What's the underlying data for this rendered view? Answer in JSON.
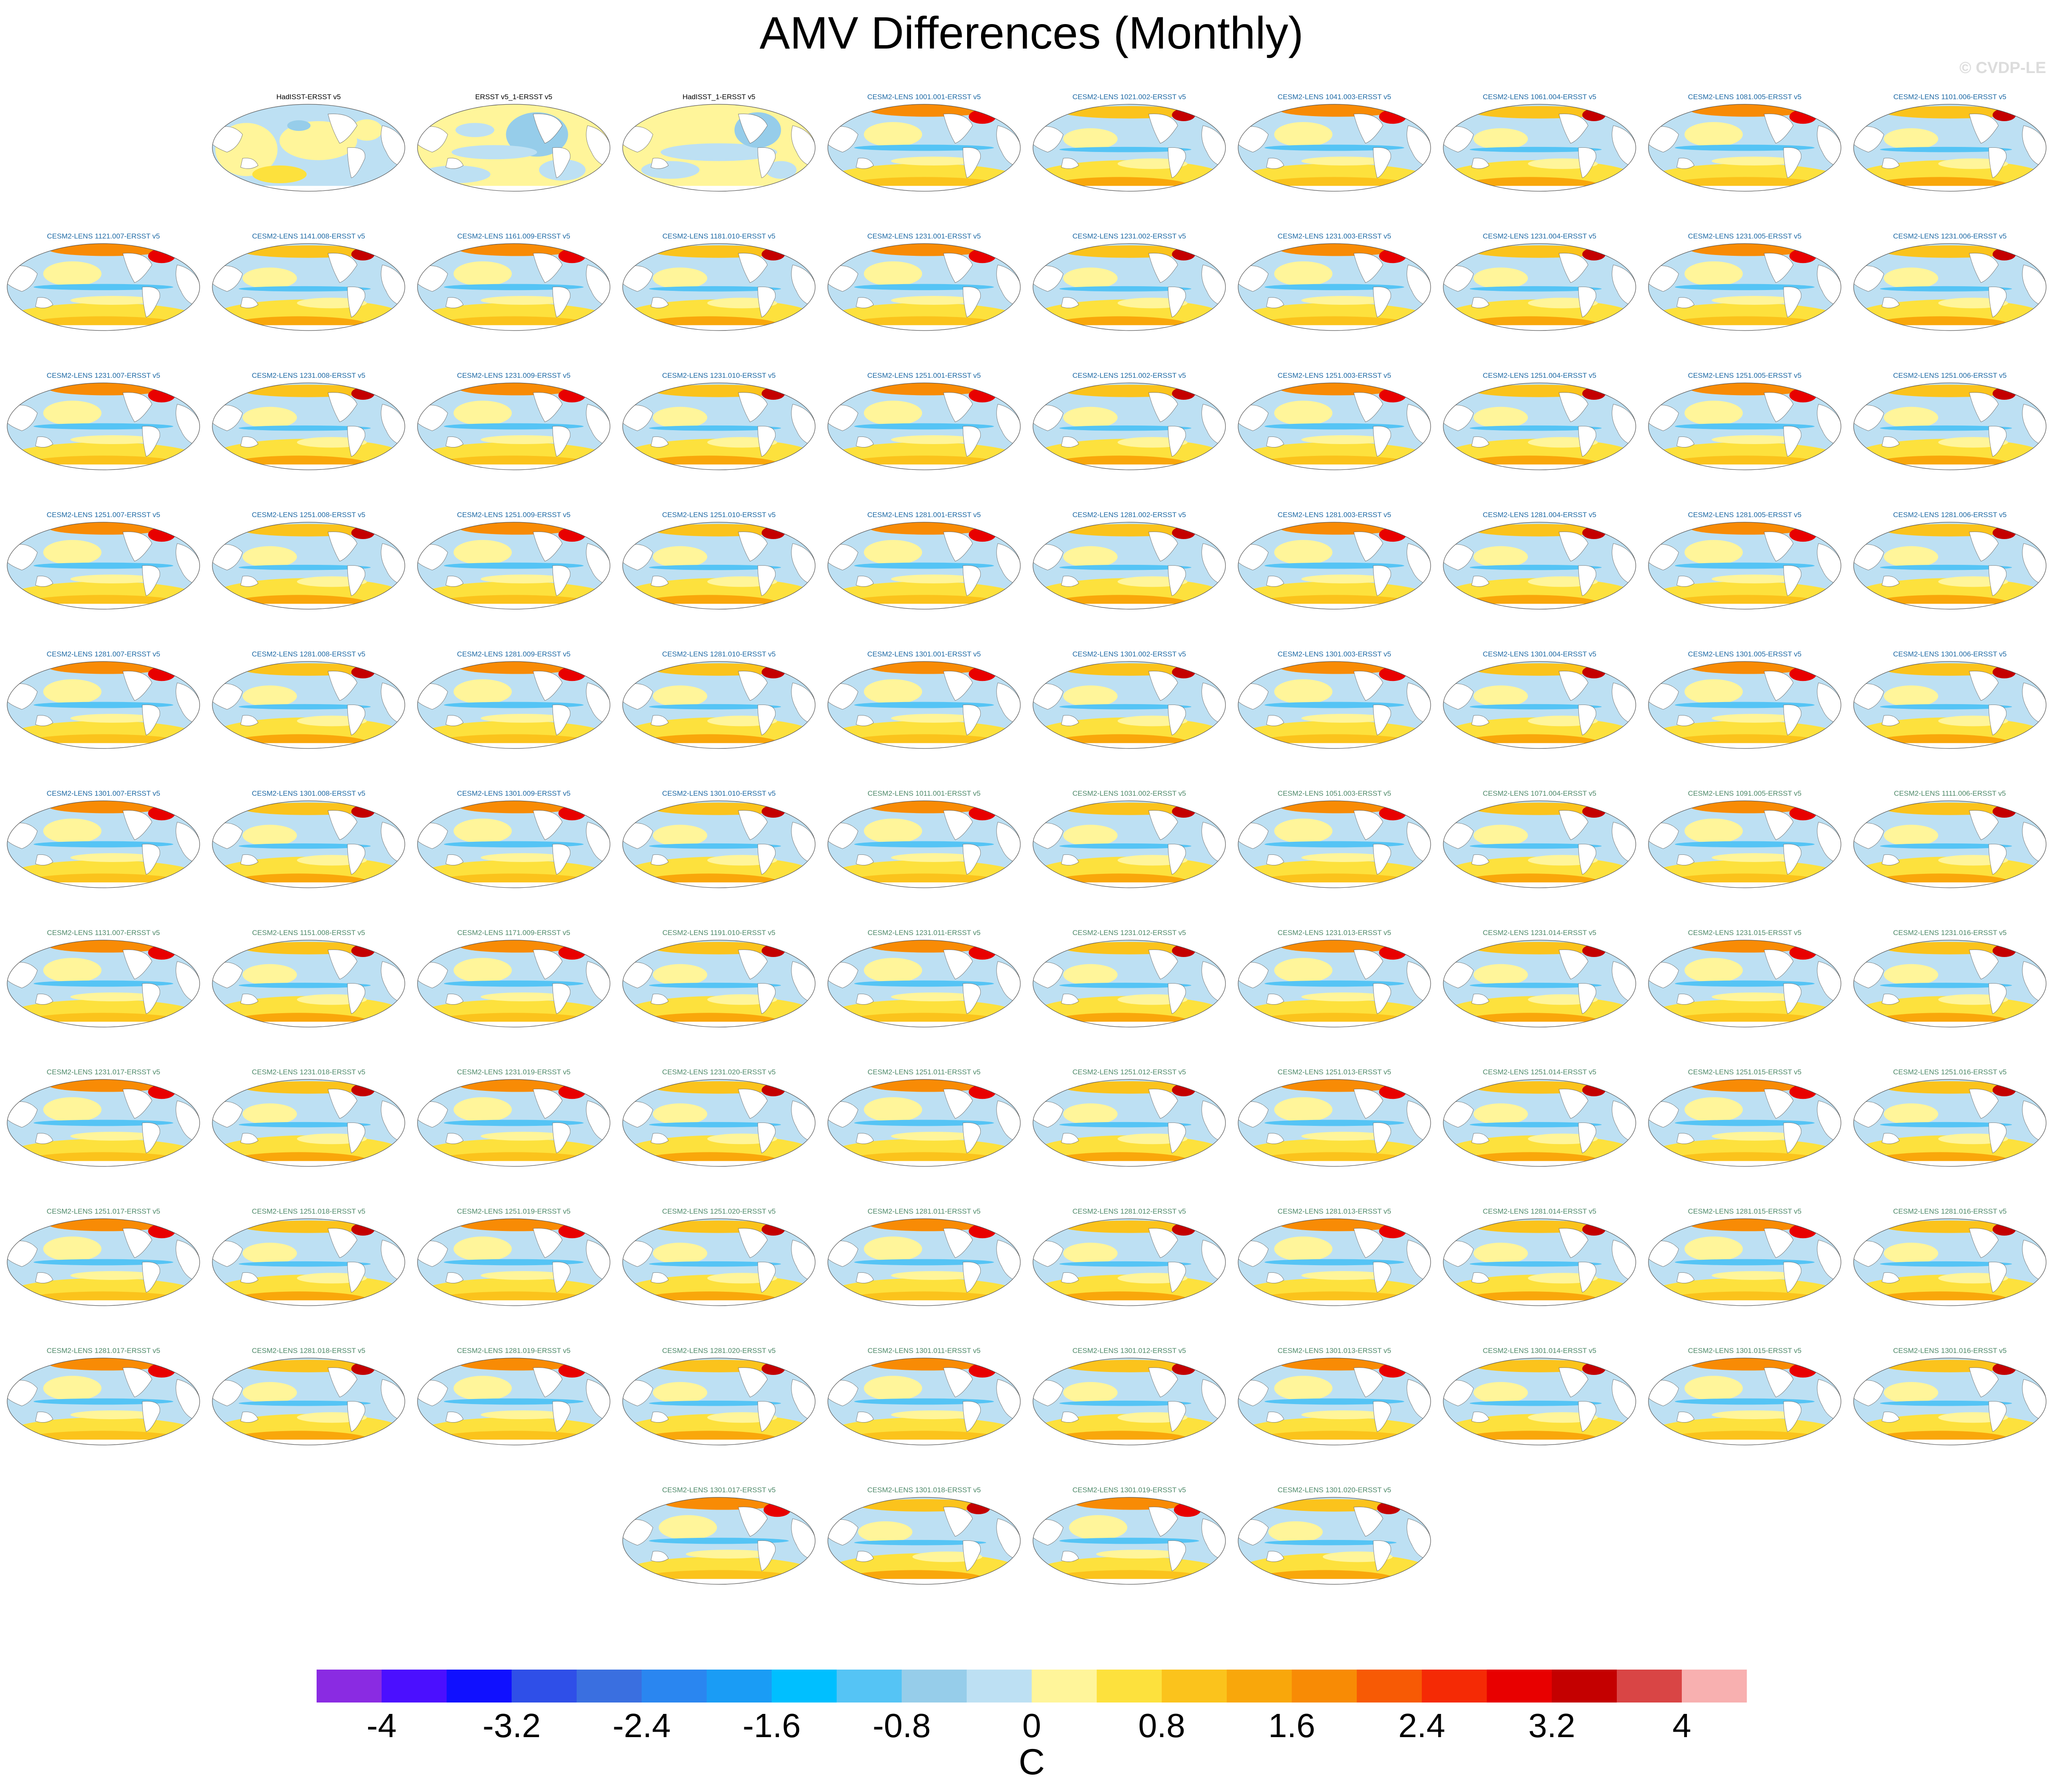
{
  "page": {
    "title": "AMV Differences (Monthly)",
    "watermark": "© CVDP-LE"
  },
  "chart_data": {
    "type": "heatmap",
    "description_units": "C",
    "title": "AMV Differences (Monthly)",
    "projection": "global map panels (Pacific-centered)",
    "title_colors": {
      "observations": "#000000",
      "first_ensemble_set": "#1f6aa5",
      "second_ensemble_set": "#4f8a6a"
    },
    "panels": [
      {
        "label": "HadISST-ERSST v5",
        "group": "observations",
        "style": 0
      },
      {
        "label": "ERSST v5_1-ERSST v5",
        "group": "observations",
        "style": 1
      },
      {
        "label": "HadISST_1-ERSST v5",
        "group": "observations",
        "style": 2
      },
      {
        "label": "CESM2-LENS 1001.001-ERSST v5",
        "group": "first_ensemble_set",
        "style": 3
      },
      {
        "label": "CESM2-LENS 1021.002-ERSST v5",
        "group": "first_ensemble_set",
        "style": 4
      },
      {
        "label": "CESM2-LENS 1041.003-ERSST v5",
        "group": "first_ensemble_set",
        "style": 3
      },
      {
        "label": "CESM2-LENS 1061.004-ERSST v5",
        "group": "first_ensemble_set",
        "style": 4
      },
      {
        "label": "CESM2-LENS 1081.005-ERSST v5",
        "group": "first_ensemble_set",
        "style": 3
      },
      {
        "label": "CESM2-LENS 1101.006-ERSST v5",
        "group": "first_ensemble_set",
        "style": 4
      },
      {
        "label": "CESM2-LENS 1121.007-ERSST v5",
        "group": "first_ensemble_set",
        "style": 3
      },
      {
        "label": "CESM2-LENS 1141.008-ERSST v5",
        "group": "first_ensemble_set",
        "style": 4
      },
      {
        "label": "CESM2-LENS 1161.009-ERSST v5",
        "group": "first_ensemble_set",
        "style": 3
      },
      {
        "label": "CESM2-LENS 1181.010-ERSST v5",
        "group": "first_ensemble_set",
        "style": 4
      },
      {
        "label": "CESM2-LENS 1231.001-ERSST v5",
        "group": "first_ensemble_set",
        "style": 3
      },
      {
        "label": "CESM2-LENS 1231.002-ERSST v5",
        "group": "first_ensemble_set",
        "style": 4
      },
      {
        "label": "CESM2-LENS 1231.003-ERSST v5",
        "group": "first_ensemble_set",
        "style": 3
      },
      {
        "label": "CESM2-LENS 1231.004-ERSST v5",
        "group": "first_ensemble_set",
        "style": 4
      },
      {
        "label": "CESM2-LENS 1231.005-ERSST v5",
        "group": "first_ensemble_set",
        "style": 3
      },
      {
        "label": "CESM2-LENS 1231.006-ERSST v5",
        "group": "first_ensemble_set",
        "style": 4
      },
      {
        "label": "CESM2-LENS 1231.007-ERSST v5",
        "group": "first_ensemble_set",
        "style": 3
      },
      {
        "label": "CESM2-LENS 1231.008-ERSST v5",
        "group": "first_ensemble_set",
        "style": 4
      },
      {
        "label": "CESM2-LENS 1231.009-ERSST v5",
        "group": "first_ensemble_set",
        "style": 3
      },
      {
        "label": "CESM2-LENS 1231.010-ERSST v5",
        "group": "first_ensemble_set",
        "style": 4
      },
      {
        "label": "CESM2-LENS 1251.001-ERSST v5",
        "group": "first_ensemble_set",
        "style": 3
      },
      {
        "label": "CESM2-LENS 1251.002-ERSST v5",
        "group": "first_ensemble_set",
        "style": 4
      },
      {
        "label": "CESM2-LENS 1251.003-ERSST v5",
        "group": "first_ensemble_set",
        "style": 3
      },
      {
        "label": "CESM2-LENS 1251.004-ERSST v5",
        "group": "first_ensemble_set",
        "style": 4
      },
      {
        "label": "CESM2-LENS 1251.005-ERSST v5",
        "group": "first_ensemble_set",
        "style": 3
      },
      {
        "label": "CESM2-LENS 1251.006-ERSST v5",
        "group": "first_ensemble_set",
        "style": 4
      },
      {
        "label": "CESM2-LENS 1251.007-ERSST v5",
        "group": "first_ensemble_set",
        "style": 3
      },
      {
        "label": "CESM2-LENS 1251.008-ERSST v5",
        "group": "first_ensemble_set",
        "style": 4
      },
      {
        "label": "CESM2-LENS 1251.009-ERSST v5",
        "group": "first_ensemble_set",
        "style": 3
      },
      {
        "label": "CESM2-LENS 1251.010-ERSST v5",
        "group": "first_ensemble_set",
        "style": 4
      },
      {
        "label": "CESM2-LENS 1281.001-ERSST v5",
        "group": "first_ensemble_set",
        "style": 3
      },
      {
        "label": "CESM2-LENS 1281.002-ERSST v5",
        "group": "first_ensemble_set",
        "style": 4
      },
      {
        "label": "CESM2-LENS 1281.003-ERSST v5",
        "group": "first_ensemble_set",
        "style": 3
      },
      {
        "label": "CESM2-LENS 1281.004-ERSST v5",
        "group": "first_ensemble_set",
        "style": 4
      },
      {
        "label": "CESM2-LENS 1281.005-ERSST v5",
        "group": "first_ensemble_set",
        "style": 3
      },
      {
        "label": "CESM2-LENS 1281.006-ERSST v5",
        "group": "first_ensemble_set",
        "style": 4
      },
      {
        "label": "CESM2-LENS 1281.007-ERSST v5",
        "group": "first_ensemble_set",
        "style": 3
      },
      {
        "label": "CESM2-LENS 1281.008-ERSST v5",
        "group": "first_ensemble_set",
        "style": 4
      },
      {
        "label": "CESM2-LENS 1281.009-ERSST v5",
        "group": "first_ensemble_set",
        "style": 3
      },
      {
        "label": "CESM2-LENS 1281.010-ERSST v5",
        "group": "first_ensemble_set",
        "style": 4
      },
      {
        "label": "CESM2-LENS 1301.001-ERSST v5",
        "group": "first_ensemble_set",
        "style": 3
      },
      {
        "label": "CESM2-LENS 1301.002-ERSST v5",
        "group": "first_ensemble_set",
        "style": 4
      },
      {
        "label": "CESM2-LENS 1301.003-ERSST v5",
        "group": "first_ensemble_set",
        "style": 3
      },
      {
        "label": "CESM2-LENS 1301.004-ERSST v5",
        "group": "first_ensemble_set",
        "style": 4
      },
      {
        "label": "CESM2-LENS 1301.005-ERSST v5",
        "group": "first_ensemble_set",
        "style": 3
      },
      {
        "label": "CESM2-LENS 1301.006-ERSST v5",
        "group": "first_ensemble_set",
        "style": 4
      },
      {
        "label": "CESM2-LENS 1301.007-ERSST v5",
        "group": "first_ensemble_set",
        "style": 3
      },
      {
        "label": "CESM2-LENS 1301.008-ERSST v5",
        "group": "first_ensemble_set",
        "style": 4
      },
      {
        "label": "CESM2-LENS 1301.009-ERSST v5",
        "group": "first_ensemble_set",
        "style": 3
      },
      {
        "label": "CESM2-LENS 1301.010-ERSST v5",
        "group": "first_ensemble_set",
        "style": 4
      },
      {
        "label": "CESM2-LENS 1011.001-ERSST v5",
        "group": "second_ensemble_set",
        "style": 3
      },
      {
        "label": "CESM2-LENS 1031.002-ERSST v5",
        "group": "second_ensemble_set",
        "style": 4
      },
      {
        "label": "CESM2-LENS 1051.003-ERSST v5",
        "group": "second_ensemble_set",
        "style": 3
      },
      {
        "label": "CESM2-LENS 1071.004-ERSST v5",
        "group": "second_ensemble_set",
        "style": 4
      },
      {
        "label": "CESM2-LENS 1091.005-ERSST v5",
        "group": "second_ensemble_set",
        "style": 3
      },
      {
        "label": "CESM2-LENS 1111.006-ERSST v5",
        "group": "second_ensemble_set",
        "style": 4
      },
      {
        "label": "CESM2-LENS 1131.007-ERSST v5",
        "group": "second_ensemble_set",
        "style": 3
      },
      {
        "label": "CESM2-LENS 1151.008-ERSST v5",
        "group": "second_ensemble_set",
        "style": 4
      },
      {
        "label": "CESM2-LENS 1171.009-ERSST v5",
        "group": "second_ensemble_set",
        "style": 3
      },
      {
        "label": "CESM2-LENS 1191.010-ERSST v5",
        "group": "second_ensemble_set",
        "style": 4
      },
      {
        "label": "CESM2-LENS 1231.011-ERSST v5",
        "group": "second_ensemble_set",
        "style": 3
      },
      {
        "label": "CESM2-LENS 1231.012-ERSST v5",
        "group": "second_ensemble_set",
        "style": 4
      },
      {
        "label": "CESM2-LENS 1231.013-ERSST v5",
        "group": "second_ensemble_set",
        "style": 3
      },
      {
        "label": "CESM2-LENS 1231.014-ERSST v5",
        "group": "second_ensemble_set",
        "style": 4
      },
      {
        "label": "CESM2-LENS 1231.015-ERSST v5",
        "group": "second_ensemble_set",
        "style": 3
      },
      {
        "label": "CESM2-LENS 1231.016-ERSST v5",
        "group": "second_ensemble_set",
        "style": 4
      },
      {
        "label": "CESM2-LENS 1231.017-ERSST v5",
        "group": "second_ensemble_set",
        "style": 3
      },
      {
        "label": "CESM2-LENS 1231.018-ERSST v5",
        "group": "second_ensemble_set",
        "style": 4
      },
      {
        "label": "CESM2-LENS 1231.019-ERSST v5",
        "group": "second_ensemble_set",
        "style": 3
      },
      {
        "label": "CESM2-LENS 1231.020-ERSST v5",
        "group": "second_ensemble_set",
        "style": 4
      },
      {
        "label": "CESM2-LENS 1251.011-ERSST v5",
        "group": "second_ensemble_set",
        "style": 3
      },
      {
        "label": "CESM2-LENS 1251.012-ERSST v5",
        "group": "second_ensemble_set",
        "style": 4
      },
      {
        "label": "CESM2-LENS 1251.013-ERSST v5",
        "group": "second_ensemble_set",
        "style": 3
      },
      {
        "label": "CESM2-LENS 1251.014-ERSST v5",
        "group": "second_ensemble_set",
        "style": 4
      },
      {
        "label": "CESM2-LENS 1251.015-ERSST v5",
        "group": "second_ensemble_set",
        "style": 3
      },
      {
        "label": "CESM2-LENS 1251.016-ERSST v5",
        "group": "second_ensemble_set",
        "style": 4
      },
      {
        "label": "CESM2-LENS 1251.017-ERSST v5",
        "group": "second_ensemble_set",
        "style": 3
      },
      {
        "label": "CESM2-LENS 1251.018-ERSST v5",
        "group": "second_ensemble_set",
        "style": 4
      },
      {
        "label": "CESM2-LENS 1251.019-ERSST v5",
        "group": "second_ensemble_set",
        "style": 3
      },
      {
        "label": "CESM2-LENS 1251.020-ERSST v5",
        "group": "second_ensemble_set",
        "style": 4
      },
      {
        "label": "CESM2-LENS 1281.011-ERSST v5",
        "group": "second_ensemble_set",
        "style": 3
      },
      {
        "label": "CESM2-LENS 1281.012-ERSST v5",
        "group": "second_ensemble_set",
        "style": 4
      },
      {
        "label": "CESM2-LENS 1281.013-ERSST v5",
        "group": "second_ensemble_set",
        "style": 3
      },
      {
        "label": "CESM2-LENS 1281.014-ERSST v5",
        "group": "second_ensemble_set",
        "style": 4
      },
      {
        "label": "CESM2-LENS 1281.015-ERSST v5",
        "group": "second_ensemble_set",
        "style": 3
      },
      {
        "label": "CESM2-LENS 1281.016-ERSST v5",
        "group": "second_ensemble_set",
        "style": 4
      },
      {
        "label": "CESM2-LENS 1281.017-ERSST v5",
        "group": "second_ensemble_set",
        "style": 3
      },
      {
        "label": "CESM2-LENS 1281.018-ERSST v5",
        "group": "second_ensemble_set",
        "style": 4
      },
      {
        "label": "CESM2-LENS 1281.019-ERSST v5",
        "group": "second_ensemble_set",
        "style": 3
      },
      {
        "label": "CESM2-LENS 1281.020-ERSST v5",
        "group": "second_ensemble_set",
        "style": 4
      },
      {
        "label": "CESM2-LENS 1301.011-ERSST v5",
        "group": "second_ensemble_set",
        "style": 3
      },
      {
        "label": "CESM2-LENS 1301.012-ERSST v5",
        "group": "second_ensemble_set",
        "style": 4
      },
      {
        "label": "CESM2-LENS 1301.013-ERSST v5",
        "group": "second_ensemble_set",
        "style": 3
      },
      {
        "label": "CESM2-LENS 1301.014-ERSST v5",
        "group": "second_ensemble_set",
        "style": 4
      },
      {
        "label": "CESM2-LENS 1301.015-ERSST v5",
        "group": "second_ensemble_set",
        "style": 3
      },
      {
        "label": "CESM2-LENS 1301.016-ERSST v5",
        "group": "second_ensemble_set",
        "style": 4
      },
      {
        "label": "CESM2-LENS 1301.017-ERSST v5",
        "group": "second_ensemble_set",
        "style": 3
      },
      {
        "label": "CESM2-LENS 1301.018-ERSST v5",
        "group": "second_ensemble_set",
        "style": 4
      },
      {
        "label": "CESM2-LENS 1301.019-ERSST v5",
        "group": "second_ensemble_set",
        "style": 3
      },
      {
        "label": "CESM2-LENS 1301.020-ERSST v5",
        "group": "second_ensemble_set",
        "style": 4
      }
    ],
    "colorbar": {
      "label": "C",
      "levels": [
        -4.4,
        -4.0,
        -3.6,
        -3.2,
        -2.8,
        -2.4,
        -2.0,
        -1.6,
        -1.2,
        -0.8,
        -0.4,
        0.0,
        0.4,
        0.8,
        1.2,
        1.6,
        2.0,
        2.4,
        2.8,
        3.2,
        3.6,
        4.0,
        4.4
      ],
      "colors": [
        "#8a2be2",
        "#4b0fff",
        "#1010ff",
        "#2f4fe8",
        "#3a6fe0",
        "#2a86f0",
        "#1a9cf5",
        "#00bfff",
        "#55c4f5",
        "#96cdea",
        "#bde0f3",
        "#fff59a",
        "#fde13d",
        "#fbc31c",
        "#f9a70b",
        "#f88b05",
        "#f75a05",
        "#f52a05",
        "#e80000",
        "#c40000",
        "#d94545",
        "#f8b0b0"
      ],
      "tick_labels": [
        {
          "value": -4.0,
          "label": "-4"
        },
        {
          "value": -3.2,
          "label": "-3.2"
        },
        {
          "value": -2.4,
          "label": "-2.4"
        },
        {
          "value": -1.6,
          "label": "-1.6"
        },
        {
          "value": -0.8,
          "label": "-0.8"
        },
        {
          "value": 0.0,
          "label": "0"
        },
        {
          "value": 0.8,
          "label": "0.8"
        },
        {
          "value": 1.6,
          "label": "1.6"
        },
        {
          "value": 2.4,
          "label": "2.4"
        },
        {
          "value": 3.2,
          "label": "3.2"
        },
        {
          "value": 4.0,
          "label": "4"
        }
      ]
    }
  }
}
